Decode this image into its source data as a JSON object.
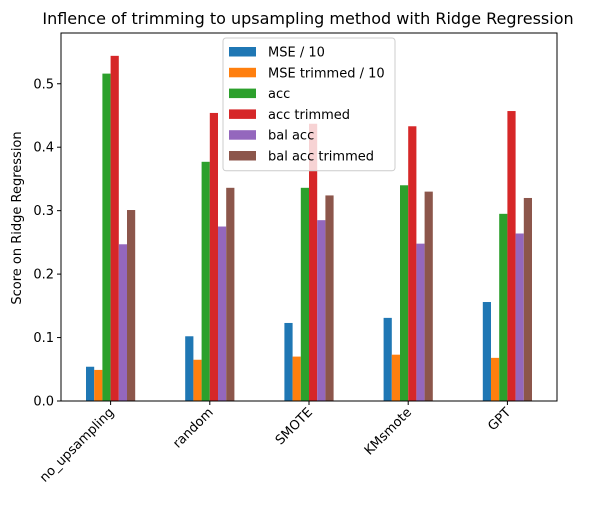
{
  "chart_data": {
    "type": "bar",
    "title": "Inflence of trimming to upsampling method with Ridge Regression",
    "xlabel": "",
    "ylabel": "Score on Ridge Regression",
    "categories": [
      "no_upsampling",
      "random",
      "SMOTE",
      "KMsmote",
      "GPT"
    ],
    "ylim": [
      0,
      0.58
    ],
    "yticks": [
      0.0,
      0.1,
      0.2,
      0.3,
      0.4,
      0.5
    ],
    "ytick_labels": [
      "0.0",
      "0.1",
      "0.2",
      "0.3",
      "0.4",
      "0.5"
    ],
    "grid": false,
    "legend_position": "top-center",
    "series": [
      {
        "name": "MSE / 10",
        "color": "#1f77b4",
        "values": [
          0.054,
          0.102,
          0.123,
          0.131,
          0.156
        ]
      },
      {
        "name": "MSE trimmed / 10",
        "color": "#ff7f0e",
        "values": [
          0.049,
          0.065,
          0.07,
          0.073,
          0.068
        ]
      },
      {
        "name": "acc",
        "color": "#2ca02c",
        "values": [
          0.516,
          0.377,
          0.336,
          0.34,
          0.295
        ]
      },
      {
        "name": "acc trimmed",
        "color": "#d62728",
        "values": [
          0.544,
          0.454,
          0.437,
          0.433,
          0.457
        ]
      },
      {
        "name": "bal acc",
        "color": "#9467bd",
        "values": [
          0.247,
          0.275,
          0.285,
          0.248,
          0.264
        ]
      },
      {
        "name": "bal acc trimmed",
        "color": "#8c564b",
        "values": [
          0.301,
          0.336,
          0.324,
          0.33,
          0.32
        ]
      }
    ]
  }
}
